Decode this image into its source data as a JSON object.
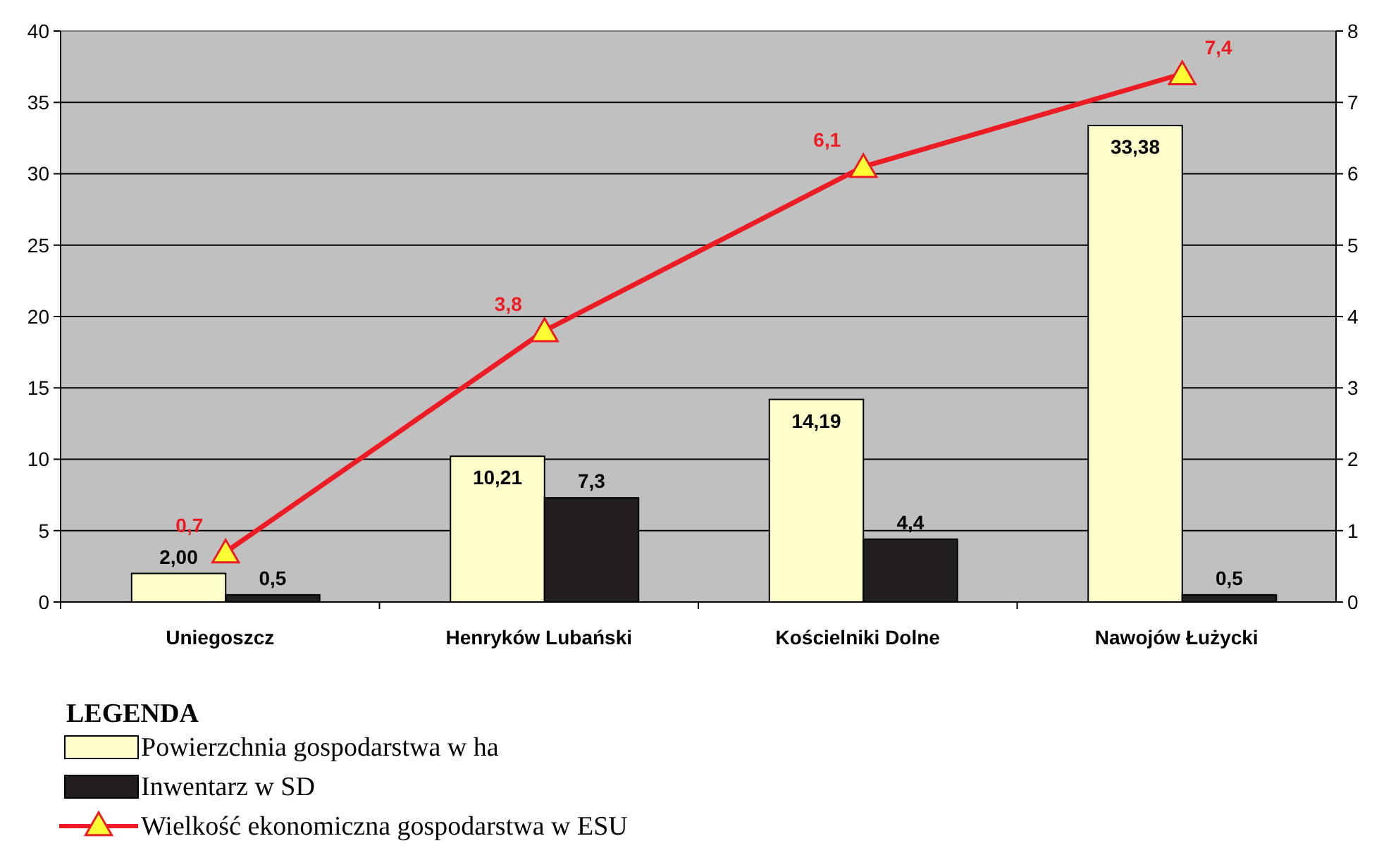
{
  "chart_data": {
    "type": "bar",
    "categories": [
      "Uniegoszcz",
      "Henryków Lubański",
      "Kościelniki Dolne",
      "Nawojów Łużycki"
    ],
    "series": [
      {
        "name": "Powierzchnia gospodarstwa w ha",
        "color": "#ffffcc",
        "values": [
          2.0,
          10.21,
          14.19,
          33.38
        ],
        "value_labels": [
          "2,00",
          "10,21",
          "14,19",
          "33,38"
        ]
      },
      {
        "name": "Inwentarz w SD",
        "color": "#231f20",
        "values": [
          0.5,
          7.3,
          4.4,
          0.5
        ],
        "value_labels": [
          "0,5",
          "7,3",
          "4,4",
          "0,5"
        ]
      },
      {
        "name": "Wielkość ekonomiczna gospodarstwa w ESU",
        "type": "line",
        "axis": "y2",
        "color": "#ed1c24",
        "marker": "triangle",
        "values": [
          0.7,
          3.8,
          6.1,
          7.4
        ],
        "value_labels": [
          "0,7",
          "3,8",
          "6,1",
          "7,4"
        ]
      }
    ],
    "ylim": [
      0,
      40
    ],
    "yticks": [
      0,
      5,
      10,
      15,
      20,
      25,
      30,
      35,
      40
    ],
    "y2lim": [
      0,
      8
    ],
    "y2ticks": [
      0,
      1,
      2,
      3,
      4,
      5,
      6,
      7,
      8
    ],
    "grid": "y",
    "legend": "bottom",
    "legend_title": "LEGENDA"
  }
}
